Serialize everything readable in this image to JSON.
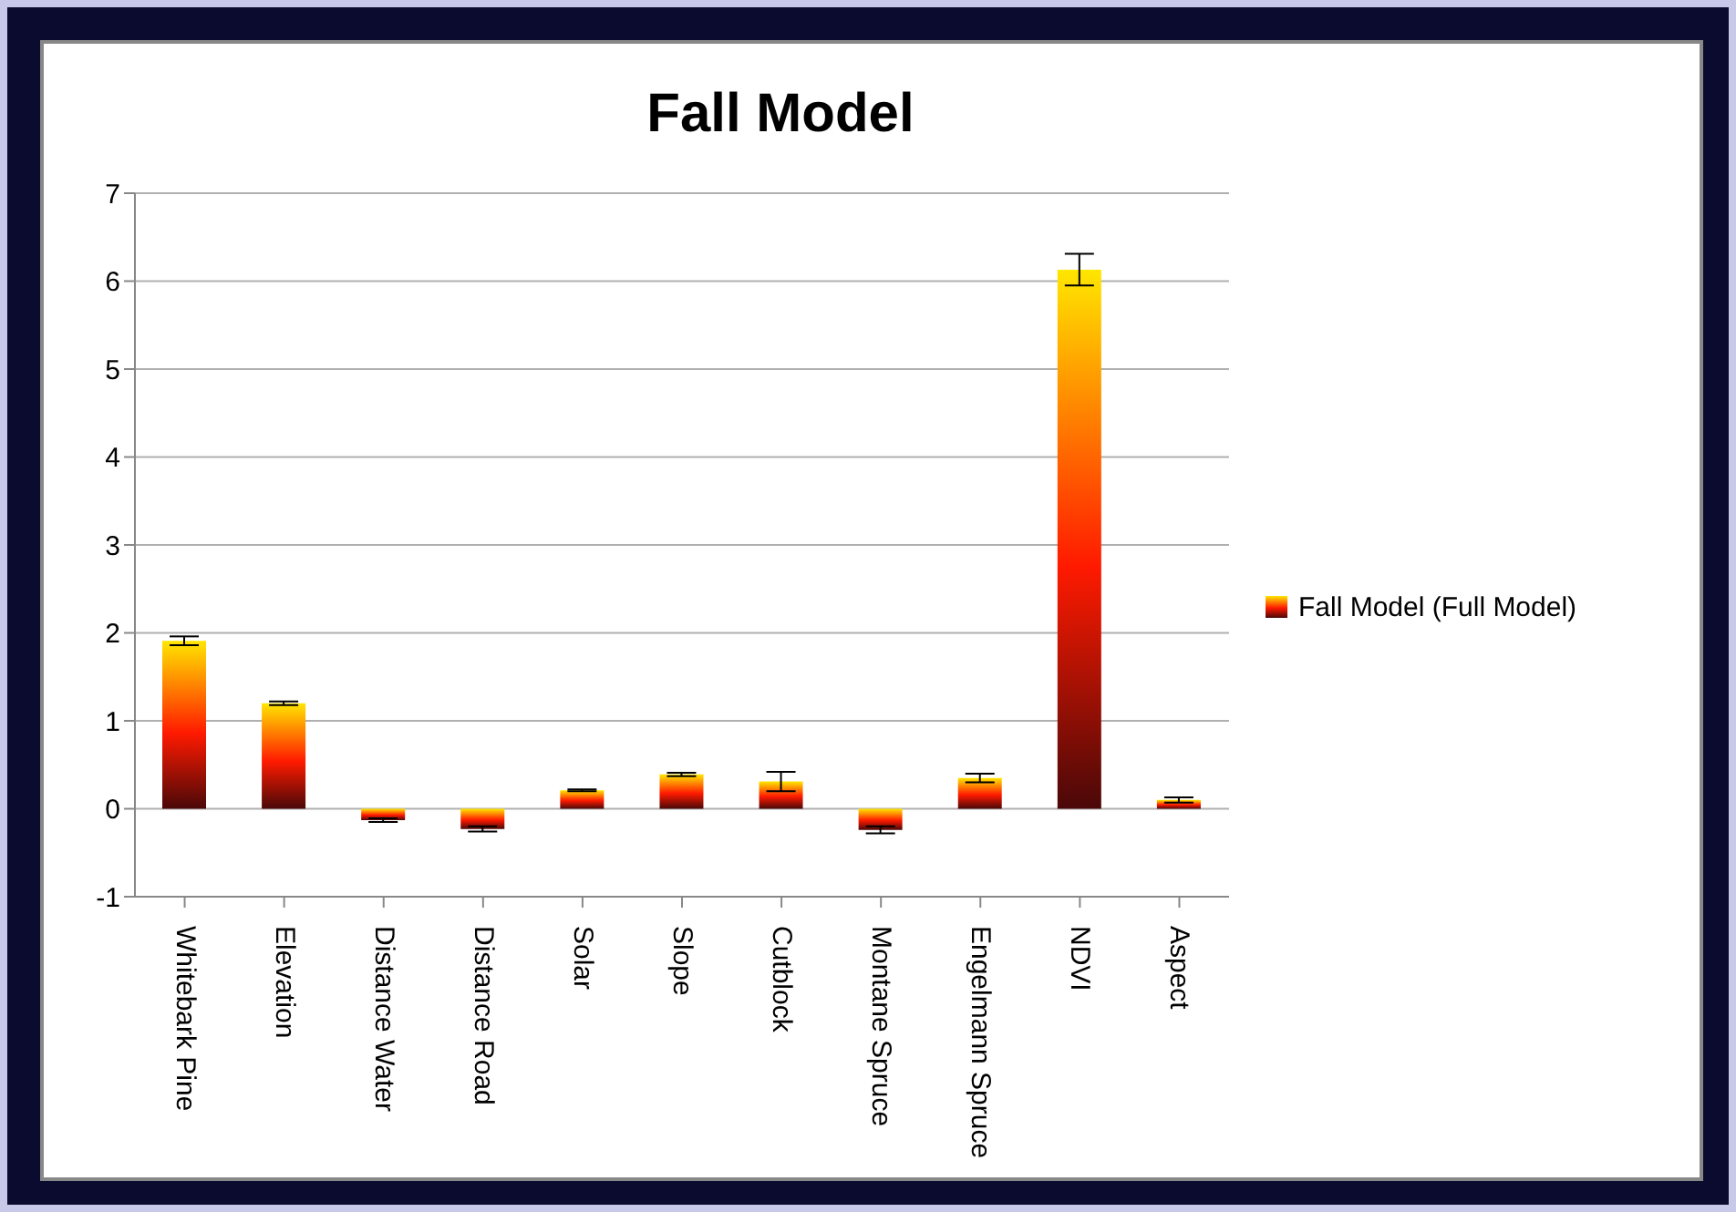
{
  "chart_data": {
    "type": "bar",
    "title": "Fall Model",
    "categories": [
      "Whitebark Pine",
      "Elevation",
      "Distance Water",
      "Distance Road",
      "Solar",
      "Slope",
      "Cutblock",
      "Montane Spruce",
      "Engelmann Spruce",
      "NDVI",
      "Aspect"
    ],
    "series": [
      {
        "name": "Fall Model (Full Model)",
        "color": "#ff1a00",
        "values": [
          1.91,
          1.2,
          -0.13,
          -0.23,
          0.21,
          0.39,
          0.31,
          -0.24,
          0.35,
          6.13,
          0.1
        ],
        "errors": [
          0.05,
          0.02,
          0.02,
          0.03,
          0.01,
          0.02,
          0.11,
          0.04,
          0.05,
          0.18,
          0.03
        ]
      }
    ],
    "ylim": [
      -1,
      7
    ],
    "yticks": [
      -1,
      0,
      1,
      2,
      3,
      4,
      5,
      6,
      7
    ],
    "grid": "y",
    "legend": "right"
  }
}
